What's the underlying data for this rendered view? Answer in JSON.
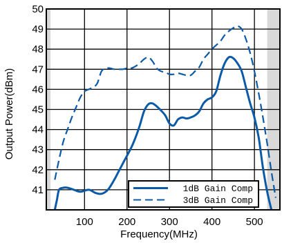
{
  "chart_data": {
    "type": "line",
    "title": "",
    "xlabel": "Frequency(MHz)",
    "ylabel": "Output Power(dBm)",
    "xlim": [
      10,
      560
    ],
    "ylim": [
      40,
      50
    ],
    "xticks": [
      100,
      200,
      300,
      400,
      500
    ],
    "yticks": [
      41,
      42,
      43,
      44,
      45,
      46,
      47,
      48,
      49,
      50
    ],
    "grid": true,
    "shaded_bands": [
      [
        10,
        20
      ],
      [
        530,
        560
      ]
    ],
    "legend_position": "bottom-right",
    "series": [
      {
        "name": "1dB Gain Comp",
        "style": "solid",
        "color": "#0a5aa8",
        "x": [
          30,
          35,
          40,
          50,
          60,
          75,
          90,
          110,
          125,
          140,
          155,
          170,
          180,
          190,
          200,
          210,
          220,
          230,
          240,
          250,
          260,
          270,
          280,
          290,
          300,
          310,
          320,
          330,
          340,
          350,
          360,
          370,
          380,
          390,
          400,
          410,
          420,
          430,
          440,
          450,
          460,
          470,
          480,
          490,
          500,
          510,
          520,
          530,
          540
        ],
        "y": [
          40,
          40.5,
          41.0,
          41.1,
          41.1,
          41.0,
          40.9,
          41.0,
          40.85,
          40.8,
          41.0,
          41.5,
          41.9,
          42.3,
          42.7,
          43.1,
          43.6,
          44.2,
          44.9,
          45.25,
          45.3,
          45.15,
          44.95,
          44.7,
          44.3,
          44.2,
          44.5,
          44.6,
          44.55,
          44.6,
          44.7,
          44.9,
          45.3,
          45.5,
          45.6,
          45.9,
          46.7,
          47.3,
          47.6,
          47.55,
          47.3,
          46.9,
          46.1,
          45.3,
          44.6,
          43.6,
          42.1,
          40.9,
          40
        ]
      },
      {
        "name": "3dB Gain Comp",
        "style": "dashed",
        "color": "#0a5aa8",
        "x": [
          30,
          40,
          50,
          60,
          70,
          80,
          90,
          100,
          110,
          120,
          130,
          140,
          150,
          160,
          170,
          180,
          190,
          200,
          210,
          220,
          230,
          240,
          250,
          260,
          270,
          280,
          290,
          300,
          310,
          320,
          330,
          340,
          350,
          360,
          370,
          380,
          390,
          400,
          410,
          420,
          430,
          440,
          450,
          460,
          470,
          480,
          490,
          500,
          510,
          520,
          530,
          540,
          550
        ],
        "y": [
          41.5,
          42.5,
          43.4,
          44.0,
          44.6,
          45.1,
          45.6,
          45.9,
          46.0,
          46.1,
          46.3,
          46.9,
          47.05,
          47.05,
          47.0,
          47.0,
          47.0,
          47.05,
          47.05,
          47.15,
          47.3,
          47.5,
          47.6,
          47.4,
          47.05,
          46.9,
          46.85,
          46.75,
          46.75,
          46.8,
          46.75,
          46.7,
          46.7,
          46.9,
          47.1,
          47.5,
          47.75,
          48.0,
          48.2,
          48.4,
          48.7,
          48.9,
          49.05,
          49.15,
          49.0,
          48.5,
          47.8,
          46.9,
          45.8,
          44.6,
          43.3,
          41.9,
          40.6
        ]
      }
    ]
  }
}
